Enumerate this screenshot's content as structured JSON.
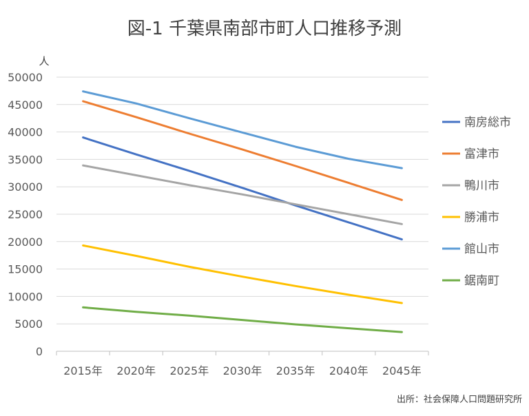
{
  "chart_data": {
    "type": "line",
    "title": "図-1 千葉県南部市町人口推移予測",
    "ylabel": "人",
    "source": "出所：社会保障人口問題研究所",
    "categories": [
      "2015年",
      "2020年",
      "2025年",
      "2030年",
      "2035年",
      "2040年",
      "2045年"
    ],
    "ylim": [
      0,
      50000
    ],
    "yticks": [
      0,
      5000,
      10000,
      15000,
      20000,
      25000,
      30000,
      35000,
      40000,
      45000,
      50000
    ],
    "grid": true,
    "legend_position": "right",
    "series": [
      {
        "name": "南房総市",
        "color": "#4472C4",
        "values": [
          39000,
          35900,
          32900,
          29800,
          26600,
          23500,
          20400
        ]
      },
      {
        "name": "富津市",
        "color": "#ED7D31",
        "values": [
          45600,
          42700,
          39700,
          36800,
          33800,
          30700,
          27600
        ]
      },
      {
        "name": "鴨川市",
        "color": "#A5A5A5",
        "values": [
          33900,
          32100,
          30300,
          28600,
          26800,
          25000,
          23200
        ]
      },
      {
        "name": "勝浦市",
        "color": "#FFC000",
        "values": [
          19300,
          17400,
          15400,
          13600,
          11900,
          10300,
          8800
        ]
      },
      {
        "name": "館山市",
        "color": "#5B9BD5",
        "values": [
          47400,
          45200,
          42500,
          39900,
          37300,
          35100,
          33400
        ]
      },
      {
        "name": "鋸南町",
        "color": "#70AD47",
        "values": [
          8000,
          7200,
          6500,
          5700,
          4900,
          4200,
          3500
        ]
      }
    ]
  }
}
